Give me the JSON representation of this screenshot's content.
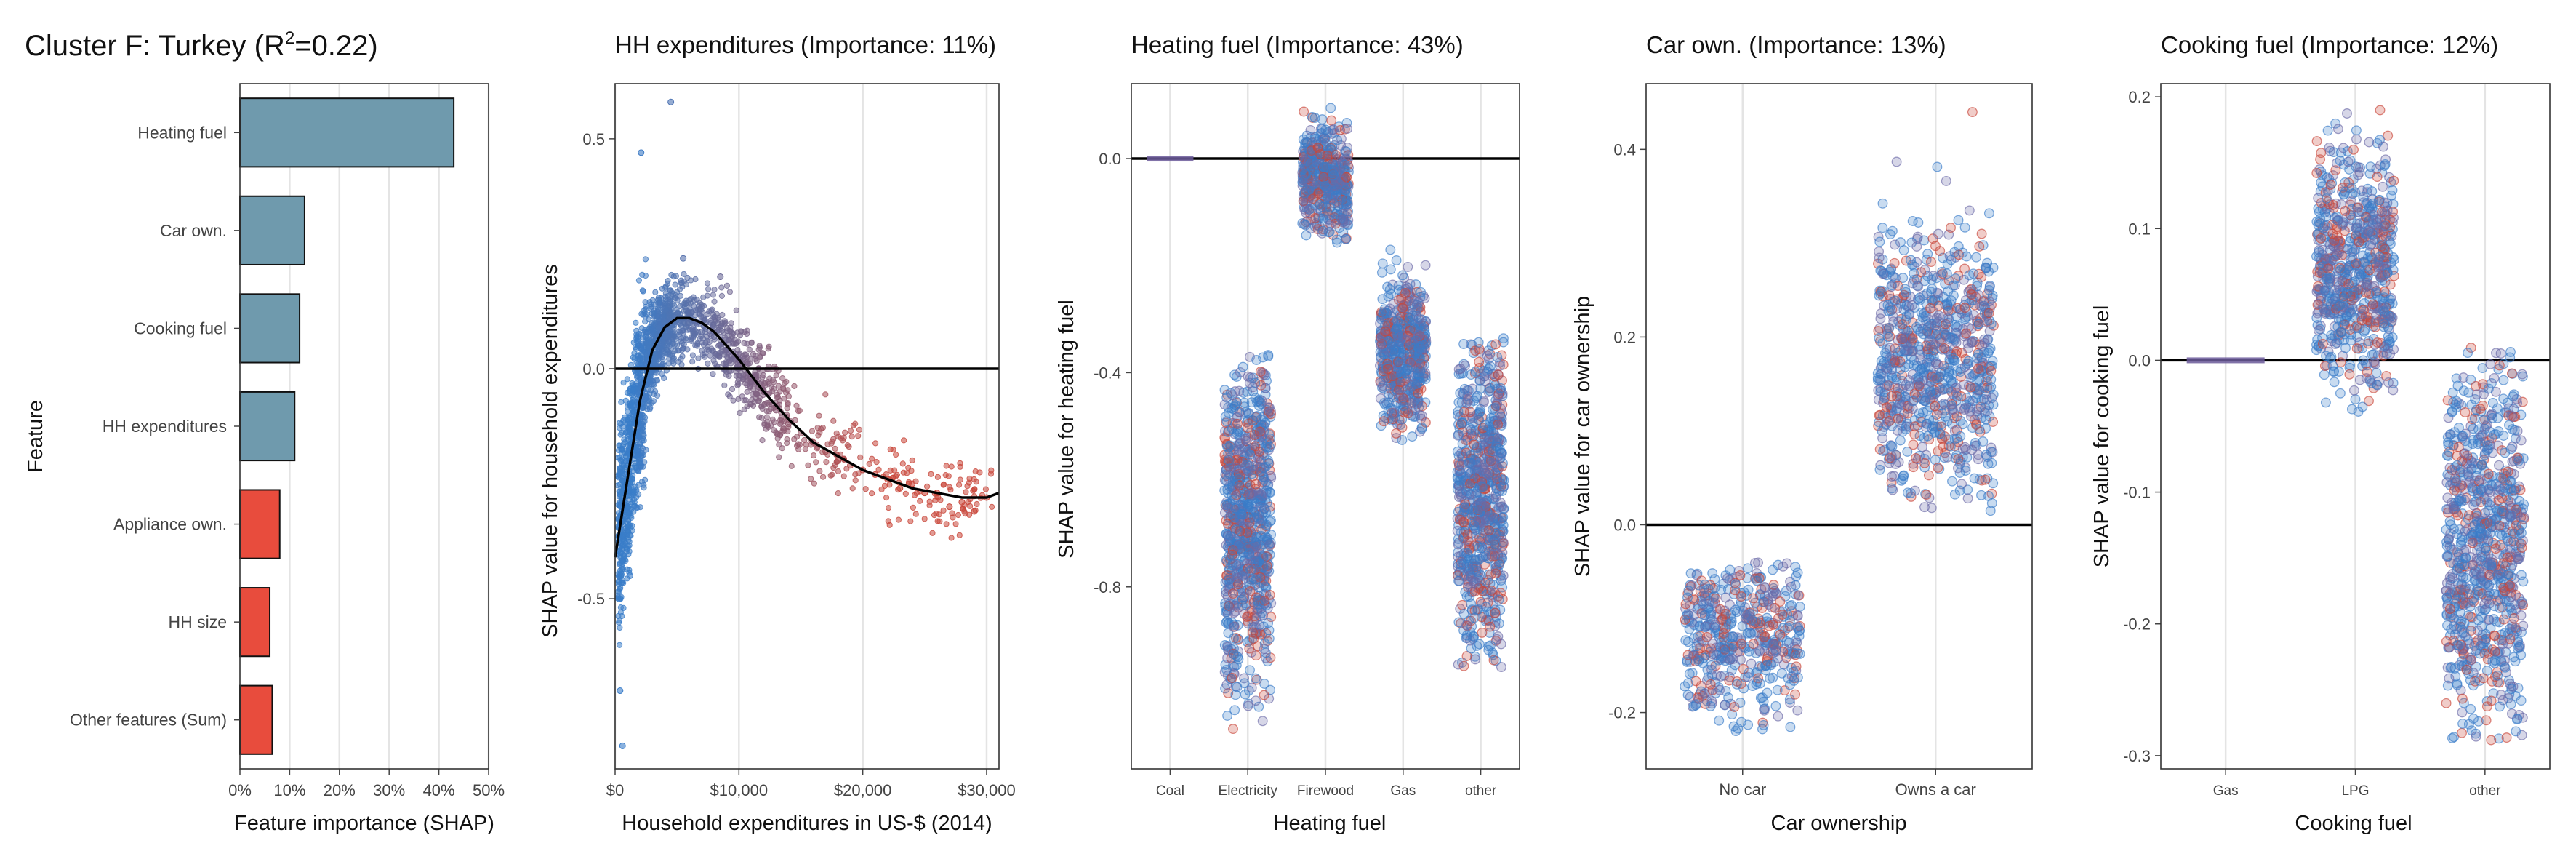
{
  "figure": {
    "main_title": "Cluster F: Turkey (R",
    "main_title_sup": "2",
    "main_title_tail": "=0.22)"
  },
  "chart_data": [
    {
      "type": "bar",
      "orientation": "horizontal",
      "title": "",
      "xlabel": "Feature importance (SHAP)",
      "ylabel": "Feature",
      "categories": [
        "Heating fuel",
        "Car own.",
        "Cooking fuel",
        "HH expenditures",
        "Appliance own.",
        "HH size",
        "Other features (Sum)"
      ],
      "values": [
        0.43,
        0.13,
        0.12,
        0.11,
        0.08,
        0.06,
        0.065
      ],
      "bar_colors": [
        "#6f9aad",
        "#6f9aad",
        "#6f9aad",
        "#6f9aad",
        "#e84c3d",
        "#e84c3d",
        "#e84c3d"
      ],
      "xlim": [
        0,
        0.5
      ],
      "x_ticks": [
        0,
        0.1,
        0.2,
        0.3,
        0.4,
        0.5
      ],
      "x_tick_labels": [
        "0%",
        "10%",
        "20%",
        "30%",
        "40%",
        "50%"
      ],
      "grid": true
    },
    {
      "type": "scatter",
      "title": "HH expenditures (Importance: 11%)",
      "xlabel": "Household expenditures in US-$ (2014)",
      "ylabel": "SHAP value for household expenditures",
      "xlim": [
        0,
        31000
      ],
      "ylim": [
        -0.87,
        0.62
      ],
      "x_ticks": [
        0,
        10000,
        20000,
        30000
      ],
      "x_tick_labels": [
        "$0",
        "$10,000",
        "$20,000",
        "$30,000"
      ],
      "y_ticks": [
        -0.5,
        0.0,
        0.5
      ],
      "y_tick_labels": [
        "-0.5",
        "0.0",
        "0.5"
      ],
      "trend_line": {
        "x": [
          0,
          1000,
          2000,
          3000,
          4000,
          5000,
          6000,
          7000,
          8000,
          10000,
          12000,
          14000,
          16000,
          18000,
          20000,
          22000,
          24000,
          26000,
          28000,
          30000,
          31000
        ],
        "y": [
          -0.41,
          -0.24,
          -0.07,
          0.04,
          0.09,
          0.11,
          0.11,
          0.1,
          0.08,
          0.02,
          -0.05,
          -0.11,
          -0.16,
          -0.19,
          -0.22,
          -0.24,
          -0.26,
          -0.27,
          -0.28,
          -0.28,
          -0.27
        ]
      },
      "points": [
        {
          "x": 900,
          "y": -0.2
        },
        {
          "x": 1500,
          "y": -0.1
        },
        {
          "x": 2000,
          "y": 0.02
        },
        {
          "x": 2500,
          "y": 0.08
        },
        {
          "x": 3000,
          "y": 0.12
        },
        {
          "x": 3500,
          "y": 0.15
        },
        {
          "x": 4000,
          "y": 0.13
        },
        {
          "x": 5000,
          "y": 0.12
        },
        {
          "x": 6000,
          "y": 0.1
        },
        {
          "x": 7000,
          "y": 0.08
        },
        {
          "x": 8000,
          "y": 0.07
        },
        {
          "x": 9000,
          "y": 0.04
        },
        {
          "x": 10000,
          "y": 0.02
        },
        {
          "x": 11000,
          "y": -0.02
        },
        {
          "x": 12000,
          "y": -0.05
        },
        {
          "x": 13000,
          "y": -0.09
        },
        {
          "x": 14000,
          "y": -0.12
        },
        {
          "x": 15000,
          "y": -0.14
        },
        {
          "x": 16000,
          "y": -0.16
        },
        {
          "x": 17000,
          "y": -0.18
        },
        {
          "x": 18000,
          "y": -0.2
        },
        {
          "x": 19000,
          "y": -0.21
        },
        {
          "x": 20000,
          "y": -0.22
        },
        {
          "x": 21000,
          "y": -0.23
        },
        {
          "x": 22000,
          "y": -0.24
        },
        {
          "x": 23000,
          "y": -0.26
        },
        {
          "x": 24000,
          "y": -0.25
        },
        {
          "x": 25000,
          "y": -0.27
        },
        {
          "x": 26000,
          "y": -0.27
        },
        {
          "x": 27000,
          "y": -0.3
        },
        {
          "x": 28000,
          "y": -0.29
        },
        {
          "x": 29000,
          "y": -0.31
        },
        {
          "x": 30000,
          "y": -0.28
        },
        {
          "x": 4500,
          "y": 0.58
        },
        {
          "x": 2100,
          "y": 0.47
        },
        {
          "x": 400,
          "y": -0.7
        },
        {
          "x": 600,
          "y": -0.82
        },
        {
          "x": 1200,
          "y": -0.45
        },
        {
          "x": 5500,
          "y": 0.24
        },
        {
          "x": 8500,
          "y": 0.2
        }
      ],
      "color_low": "#3a7dc9",
      "color_high": "#c9473b",
      "grid": true
    },
    {
      "type": "scatter",
      "subtype": "categorical-jitter",
      "title": "Heating fuel (Importance: 43%)",
      "xlabel": "Heating fuel",
      "ylabel": "SHAP value for heating fuel",
      "categories": [
        "Coal",
        "Electricity",
        "Firewood",
        "Gas",
        "other"
      ],
      "ylim": [
        -1.14,
        0.14
      ],
      "y_ticks": [
        0.0,
        -0.4,
        -0.8
      ],
      "y_tick_labels": [
        "0.0",
        "-0.4",
        "-0.8"
      ],
      "groups": [
        {
          "category": "Coal",
          "min": 0.0,
          "max": 0.0,
          "center": 0.0,
          "spread": 0.0
        },
        {
          "category": "Electricity",
          "min": -1.07,
          "max": -0.36,
          "center": -0.68,
          "spread": 0.13
        },
        {
          "category": "Firewood",
          "min": -0.16,
          "max": 0.13,
          "center": -0.04,
          "spread": 0.04
        },
        {
          "category": "Gas",
          "min": -0.53,
          "max": -0.17,
          "center": -0.36,
          "spread": 0.06
        },
        {
          "category": "other",
          "min": -0.95,
          "max": -0.33,
          "center": -0.62,
          "spread": 0.13
        }
      ],
      "grid": true
    },
    {
      "type": "scatter",
      "subtype": "categorical-jitter",
      "title": "Car own. (Importance: 13%)",
      "xlabel": "Car ownership",
      "ylabel": "SHAP value for car ownership",
      "categories": [
        "No car",
        "Owns a car"
      ],
      "ylim": [
        -0.26,
        0.47
      ],
      "y_ticks": [
        -0.2,
        0.0,
        0.2,
        0.4
      ],
      "y_tick_labels": [
        "-0.2",
        "0.0",
        "0.2",
        "0.4"
      ],
      "groups": [
        {
          "category": "No car",
          "min": -0.22,
          "max": -0.04,
          "center": -0.11,
          "spread": 0.04
        },
        {
          "category": "Owns a car",
          "min": 0.01,
          "max": 0.44,
          "center": 0.17,
          "spread": 0.06
        }
      ],
      "grid": true
    },
    {
      "type": "scatter",
      "subtype": "categorical-jitter",
      "title": "Cooking fuel (Importance: 12%)",
      "xlabel": "Cooking fuel",
      "ylabel": "SHAP value for cooking fuel",
      "categories": [
        "Gas",
        "LPG",
        "other"
      ],
      "ylim": [
        -0.31,
        0.21
      ],
      "y_ticks": [
        0.2,
        0.1,
        0.0,
        -0.1,
        -0.2,
        -0.3
      ],
      "y_tick_labels": [
        "0.2",
        "0.1",
        "0.0",
        "-0.1",
        "-0.2",
        "-0.3"
      ],
      "groups": [
        {
          "category": "Gas",
          "min": 0.0,
          "max": 0.0,
          "center": 0.0,
          "spread": 0.0
        },
        {
          "category": "LPG",
          "min": -0.04,
          "max": 0.19,
          "center": 0.07,
          "spread": 0.04
        },
        {
          "category": "other",
          "min": -0.29,
          "max": 0.01,
          "center": -0.14,
          "spread": 0.06
        }
      ],
      "grid": true
    }
  ]
}
